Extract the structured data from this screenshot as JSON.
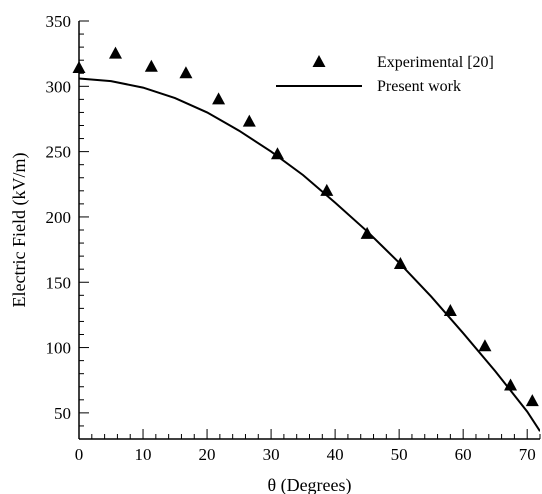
{
  "chart_data": {
    "type": "scatter",
    "title": "",
    "xlabel": "θ (Degrees)",
    "ylabel": "Electric Field (kV/m)",
    "xlim": [
      0,
      72
    ],
    "ylim": [
      30,
      350
    ],
    "x_ticks": [
      0,
      10,
      20,
      30,
      40,
      50,
      60,
      70
    ],
    "y_ticks": [
      50,
      100,
      150,
      200,
      250,
      300,
      350
    ],
    "grid": false,
    "legend_position": "top-right",
    "series": [
      {
        "name": "Experimental [20]",
        "kind": "scatter",
        "marker": "triangle",
        "color": "#000000",
        "x": [
          0,
          5.7,
          11.3,
          16.7,
          21.8,
          26.6,
          31.0,
          38.7,
          45.0,
          50.2,
          58.0,
          63.4,
          67.4,
          70.8
        ],
        "y": [
          314,
          325,
          315,
          310,
          290,
          273,
          248,
          220,
          187,
          164,
          128,
          101,
          71,
          59
        ]
      },
      {
        "name": "Present work",
        "kind": "line",
        "color": "#000000",
        "x": [
          0,
          5,
          10,
          15,
          20,
          25,
          30,
          35,
          40,
          45,
          50,
          55,
          60,
          65,
          70,
          72
        ],
        "y": [
          306,
          304,
          299,
          291,
          280,
          266,
          250,
          232,
          211,
          189,
          165,
          139,
          111,
          82,
          51,
          36
        ]
      }
    ]
  }
}
